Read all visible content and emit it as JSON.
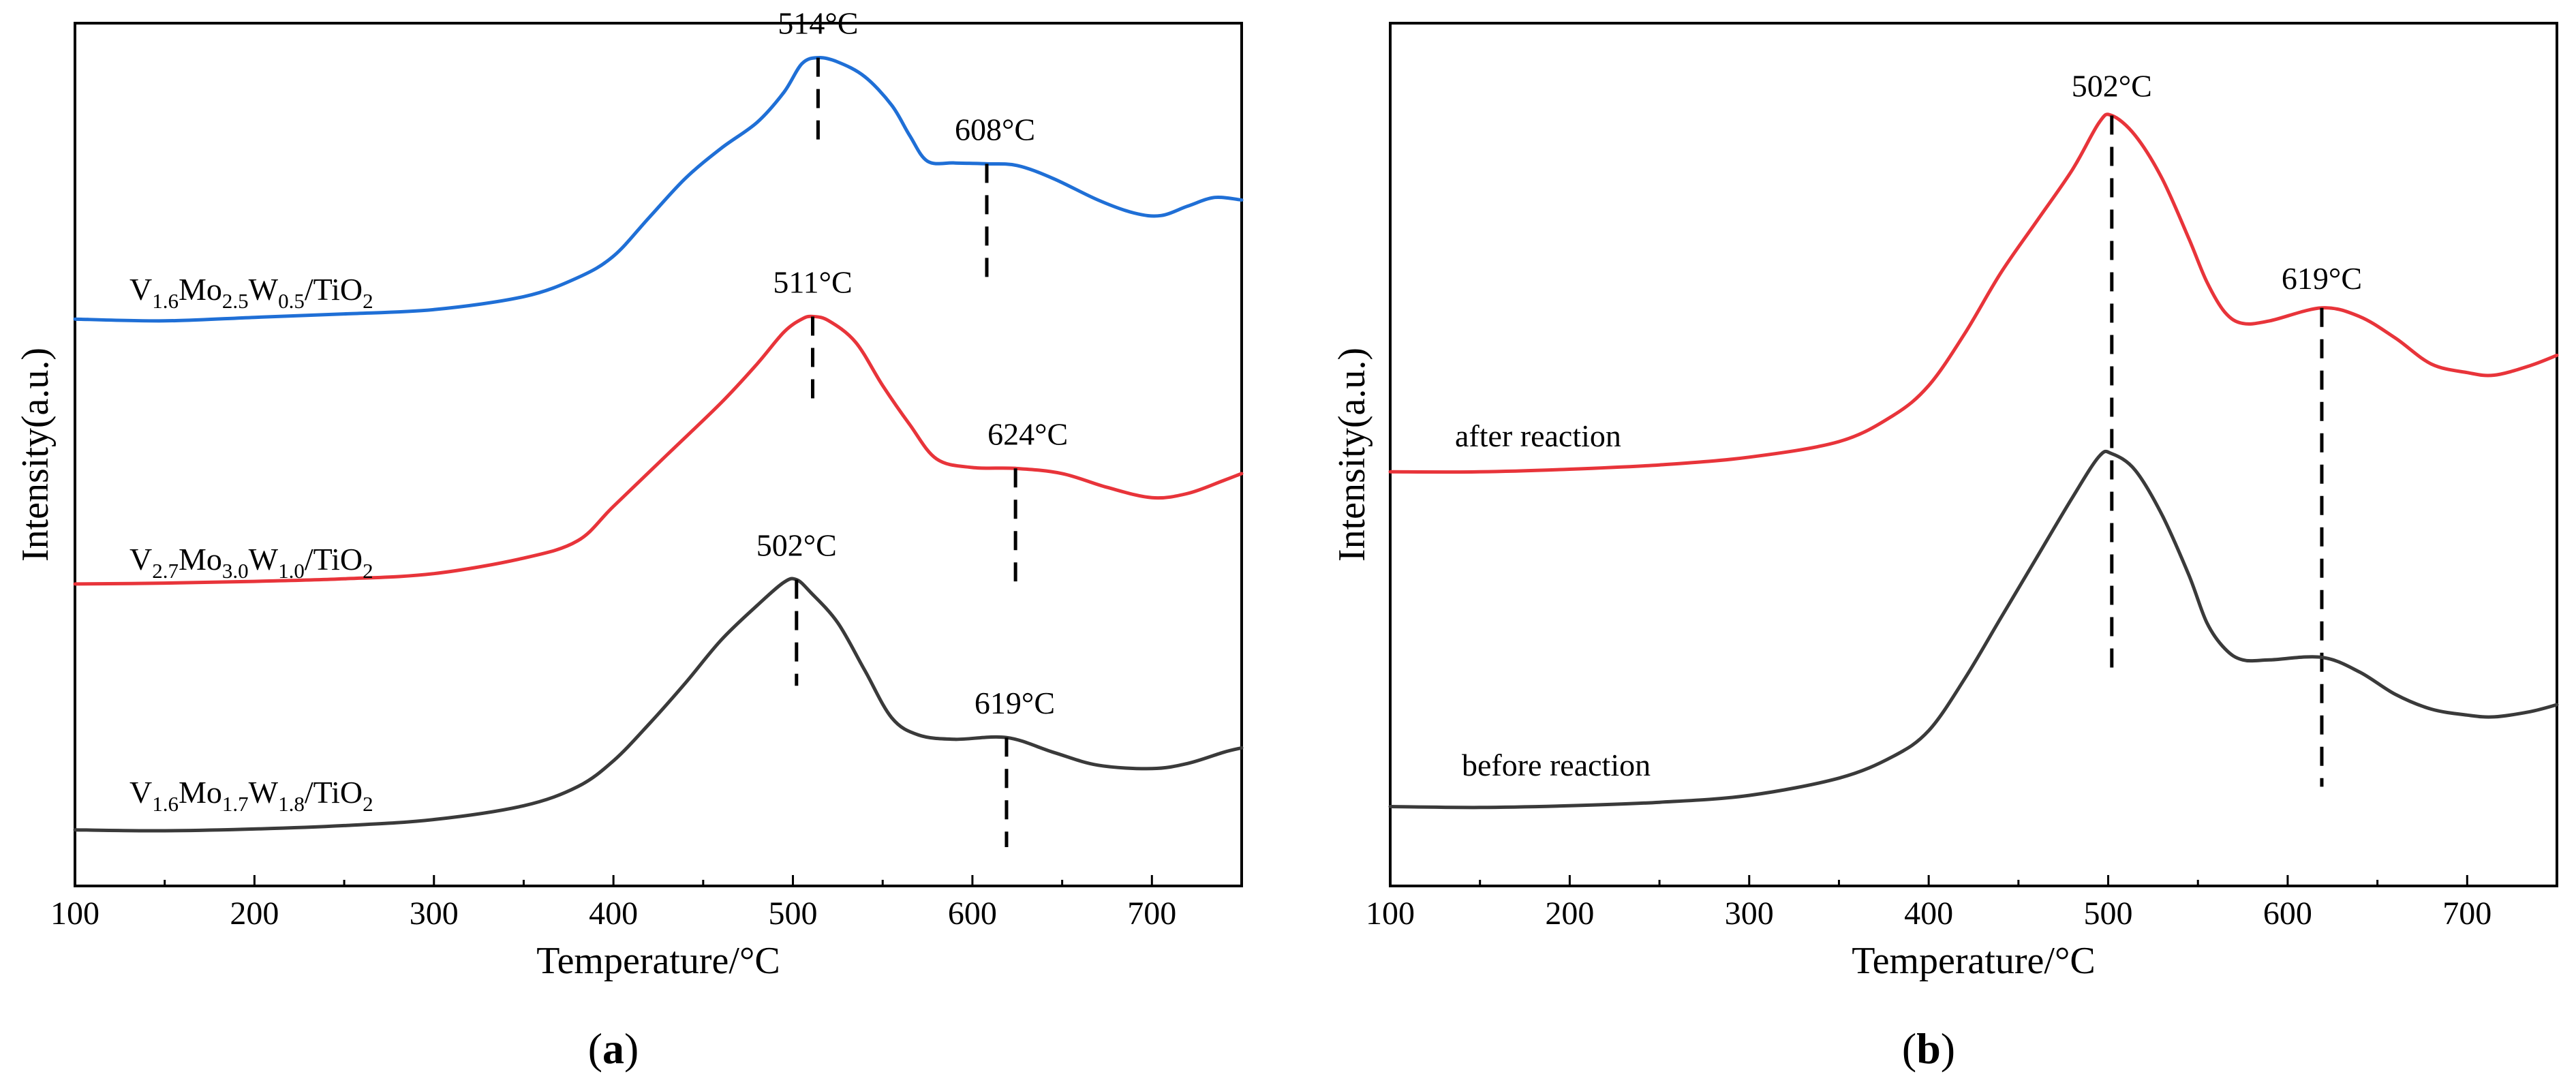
{
  "chart_data": [
    {
      "type": "line",
      "panel_label": "a",
      "xlabel": "Temperature/°C",
      "ylabel": "Intensity(a.u.)",
      "xlim": [
        100,
        750
      ],
      "ylim": [
        0,
        10
      ],
      "xticks": [
        100,
        200,
        300,
        400,
        500,
        600,
        700
      ],
      "yticks": [],
      "grid": false,
      "series": [
        {
          "name": "V1.6Mo2.5W0.5/TiO2",
          "label_parts": [
            {
              "t": "V",
              "sub": false
            },
            {
              "t": "1.6",
              "sub": true
            },
            {
              "t": "Mo",
              "sub": false
            },
            {
              "t": "2.5",
              "sub": true
            },
            {
              "t": "W",
              "sub": false
            },
            {
              "t": "0.5",
              "sub": true
            },
            {
              "t": "/TiO",
              "sub": false
            },
            {
              "t": "2",
              "sub": true
            }
          ],
          "color": "#1f6fd6",
          "x": [
            100,
            150,
            200,
            250,
            300,
            350,
            380,
            400,
            420,
            440,
            460,
            480,
            495,
            505,
            514,
            525,
            540,
            555,
            565,
            575,
            590,
            608,
            625,
            645,
            670,
            690,
            705,
            720,
            735,
            750
          ],
          "y": [
            6.57,
            6.55,
            6.59,
            6.63,
            6.68,
            6.83,
            7.05,
            7.3,
            7.75,
            8.2,
            8.55,
            8.85,
            9.2,
            9.53,
            9.6,
            9.55,
            9.38,
            9.05,
            8.7,
            8.4,
            8.38,
            8.37,
            8.35,
            8.2,
            7.95,
            7.8,
            7.77,
            7.88,
            7.98,
            7.95
          ],
          "peaks": [
            {
              "x": 514,
              "label": "514°C",
              "y_top": 9.6,
              "y_bottom": 8.58
            },
            {
              "x": 608,
              "label": "608°C",
              "y_top": 8.37,
              "y_bottom": 6.95
            }
          ]
        },
        {
          "name": "V2.7Mo3.0W1.0/TiO2",
          "label_parts": [
            {
              "t": "V",
              "sub": false
            },
            {
              "t": "2.7",
              "sub": true
            },
            {
              "t": "Mo",
              "sub": false
            },
            {
              "t": "3.0",
              "sub": true
            },
            {
              "t": "W",
              "sub": false
            },
            {
              "t": "1.0",
              "sub": true
            },
            {
              "t": "/TiO",
              "sub": false
            },
            {
              "t": "2",
              "sub": true
            }
          ],
          "color": "#e8343a",
          "x": [
            100,
            150,
            200,
            250,
            300,
            350,
            380,
            400,
            430,
            460,
            480,
            495,
            505,
            511,
            520,
            535,
            550,
            565,
            580,
            600,
            624,
            650,
            675,
            700,
            720,
            740,
            750
          ],
          "y": [
            3.5,
            3.51,
            3.53,
            3.56,
            3.62,
            3.8,
            4.0,
            4.4,
            5.0,
            5.6,
            6.05,
            6.42,
            6.57,
            6.6,
            6.55,
            6.3,
            5.8,
            5.35,
            4.95,
            4.85,
            4.84,
            4.78,
            4.62,
            4.5,
            4.55,
            4.7,
            4.78
          ],
          "peaks": [
            {
              "x": 511,
              "label": "511°C",
              "y_top": 6.6,
              "y_bottom": 5.55
            },
            {
              "x": 624,
              "label": "624°C",
              "y_top": 4.84,
              "y_bottom": 3.53
            }
          ]
        },
        {
          "name": "V1.6Mo1.7W1.8/TiO2",
          "label_parts": [
            {
              "t": "V",
              "sub": false
            },
            {
              "t": "1.6",
              "sub": true
            },
            {
              "t": "Mo",
              "sub": false
            },
            {
              "t": "1.7",
              "sub": true
            },
            {
              "t": "W",
              "sub": false
            },
            {
              "t": "1.8",
              "sub": true
            },
            {
              "t": "/TiO",
              "sub": false
            },
            {
              "t": "2",
              "sub": true
            }
          ],
          "color": "#3a3a3a",
          "x": [
            100,
            150,
            200,
            250,
            300,
            350,
            380,
            400,
            420,
            440,
            460,
            480,
            495,
            502,
            510,
            525,
            540,
            555,
            570,
            590,
            619,
            645,
            670,
            700,
            720,
            740,
            750
          ],
          "y": [
            0.65,
            0.64,
            0.66,
            0.7,
            0.77,
            0.93,
            1.15,
            1.45,
            1.88,
            2.35,
            2.85,
            3.25,
            3.52,
            3.55,
            3.4,
            3.05,
            2.5,
            1.95,
            1.75,
            1.7,
            1.72,
            1.55,
            1.4,
            1.36,
            1.42,
            1.55,
            1.6
          ],
          "peaks": [
            {
              "x": 502,
              "label": "502°C",
              "y_top": 3.55,
              "y_bottom": 2.32
            },
            {
              "x": 619,
              "label": "619°C",
              "y_top": 1.72,
              "y_bottom": 0.45
            }
          ]
        }
      ]
    },
    {
      "type": "line",
      "panel_label": "b",
      "xlabel": "Temperature/°C",
      "ylabel": "Intensity(a.u.)",
      "xlim": [
        100,
        750
      ],
      "ylim": [
        0,
        10
      ],
      "xticks": [
        100,
        200,
        300,
        400,
        500,
        600,
        700
      ],
      "yticks": [],
      "grid": false,
      "series": [
        {
          "name": "after reaction",
          "label_parts": [
            {
              "t": "after reaction",
              "sub": false
            }
          ],
          "color": "#e8343a",
          "x": [
            100,
            150,
            200,
            250,
            300,
            350,
            380,
            400,
            420,
            440,
            460,
            480,
            495,
            502,
            515,
            530,
            545,
            555,
            565,
            575,
            590,
            619,
            640,
            660,
            680,
            700,
            715,
            735,
            750
          ],
          "y": [
            4.8,
            4.8,
            4.83,
            4.88,
            4.97,
            5.15,
            5.45,
            5.8,
            6.4,
            7.1,
            7.7,
            8.3,
            8.85,
            8.93,
            8.7,
            8.2,
            7.5,
            7.0,
            6.65,
            6.52,
            6.55,
            6.7,
            6.6,
            6.35,
            6.05,
            5.95,
            5.92,
            6.03,
            6.15
          ],
          "peaks": [
            {
              "x": 502,
              "label": "502°C",
              "y_top": 8.93,
              "y_bottom": 2.5
            },
            {
              "x": 619,
              "label": "619°C",
              "y_top": 6.7,
              "y_bottom": 1.15
            }
          ]
        },
        {
          "name": "before reaction",
          "label_parts": [
            {
              "t": "before reaction",
              "sub": false
            }
          ],
          "color": "#3a3a3a",
          "x": [
            100,
            150,
            200,
            250,
            300,
            350,
            380,
            400,
            420,
            440,
            460,
            480,
            495,
            502,
            515,
            530,
            545,
            555,
            565,
            575,
            590,
            619,
            640,
            660,
            680,
            700,
            715,
            735,
            750
          ],
          "y": [
            0.92,
            0.91,
            0.93,
            0.97,
            1.05,
            1.25,
            1.5,
            1.8,
            2.4,
            3.1,
            3.8,
            4.5,
            4.98,
            5.01,
            4.82,
            4.3,
            3.6,
            3.05,
            2.75,
            2.62,
            2.62,
            2.65,
            2.48,
            2.22,
            2.05,
            1.98,
            1.96,
            2.02,
            2.1
          ],
          "peaks": []
        }
      ]
    }
  ]
}
